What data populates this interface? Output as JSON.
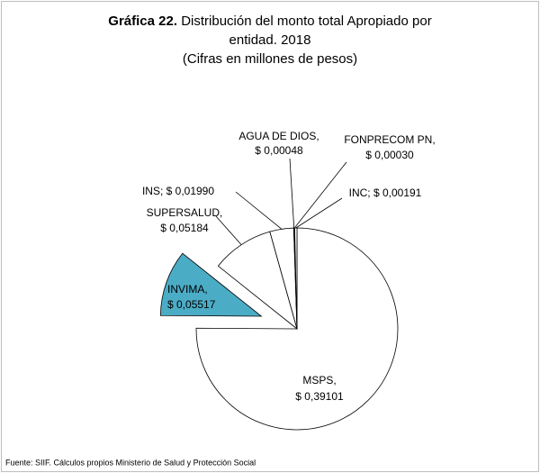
{
  "chart_data": {
    "type": "pie",
    "title_label": "Gráfica 22.",
    "title": "Distribución del monto total Apropiado por",
    "title_line2": "entidad.  2018",
    "subtitle": "(Cifras en millones de pesos)",
    "source": "Fuente: SIIF. Cálculos propios Ministerio de Salud y Protección Social",
    "categories": [
      "MSPS,",
      "INVIMA,",
      "SUPERSALUD,",
      "INS;",
      "AGUA DE DIOS,",
      "FONPRECOM PN,",
      "INC;"
    ],
    "values": [
      0.39101,
      0.05517,
      0.05184,
      0.0199,
      0.00048,
      0.0003,
      0.00191
    ],
    "value_labels": [
      "$ 0,39101",
      "$ 0,05517",
      "$ 0,05184",
      "$ 0,01990",
      "$ 0,00048",
      "$ 0,00030",
      "$ 0,00191"
    ],
    "colors": [
      "#ffffff",
      "#4bacc6",
      "#ffffff",
      "#ffffff",
      "#ffffff",
      "#ffffff",
      "#ffffff"
    ],
    "exploded": [
      false,
      true,
      false,
      false,
      false,
      false,
      false
    ]
  }
}
